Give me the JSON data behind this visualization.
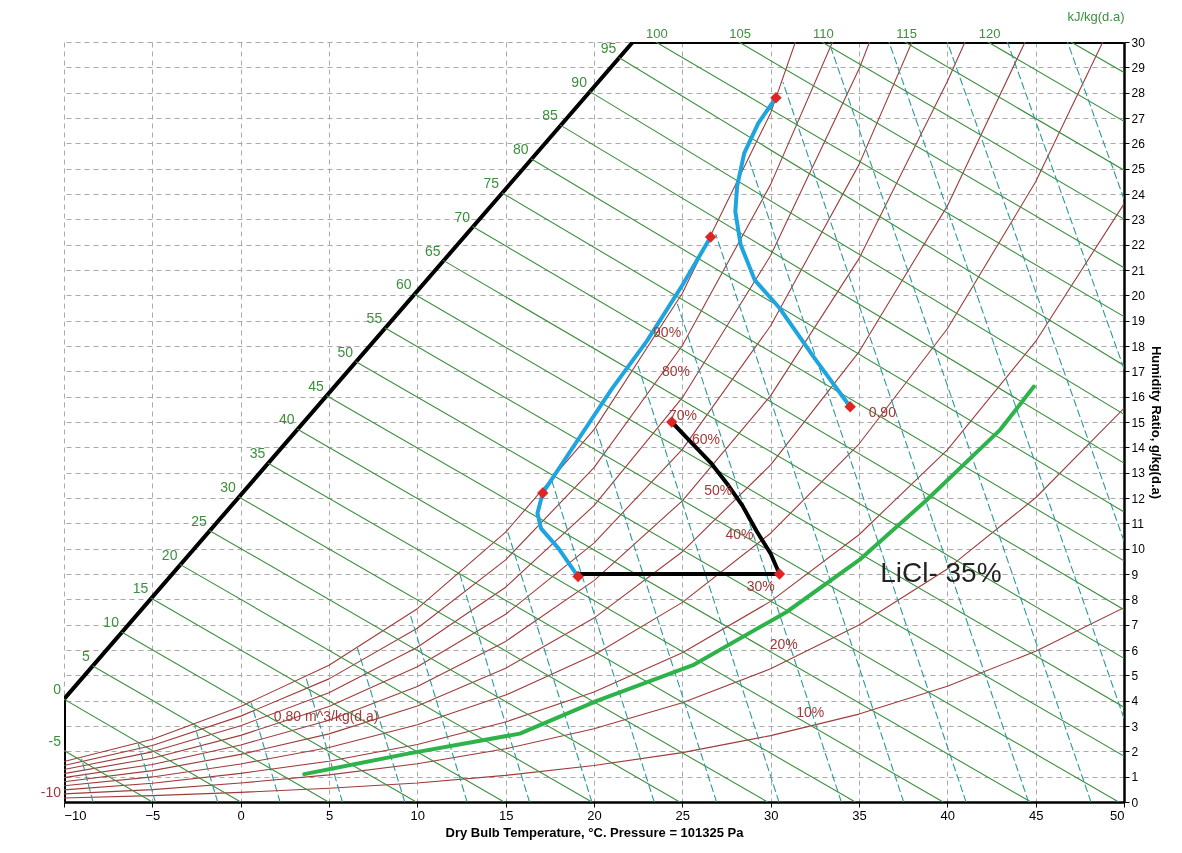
{
  "chart_data": {
    "type": "line",
    "xlabel": "Dry Bulb Temperature, °C. Pressure = 101325 Pa",
    "ylabel": "Humidity Ratio, g/kg(d.a)",
    "xlim": [
      -10,
      50
    ],
    "xticks": [
      -10,
      -5,
      0,
      5,
      10,
      15,
      20,
      25,
      30,
      35,
      40,
      45,
      50
    ],
    "ylim": [
      0,
      30
    ],
    "yticks": [
      0,
      1,
      2,
      3,
      4,
      5,
      6,
      7,
      8,
      9,
      10,
      11,
      12,
      13,
      14,
      15,
      16,
      17,
      18,
      19,
      20,
      21,
      22,
      23,
      24,
      25,
      26,
      27,
      28,
      29,
      30
    ],
    "x2lim": [
      64.4,
      128.1
    ],
    "x2ticks": [
      100,
      105,
      110,
      115,
      120
    ],
    "x2label": "kJ/kg(d.a)",
    "grid": true,
    "series": [
      {
        "color": "#000000",
        "x": [
          -10,
          -10,
          22.2,
          50
        ],
        "values": [
          0,
          4.06,
          30,
          30
        ]
      },
      {
        "color": "#a03a3a",
        "x": [
          -10,
          -5,
          0,
          5,
          10,
          15,
          20,
          25,
          30,
          31.4
        ],
        "values": [
          1.6,
          2.48,
          3.77,
          5.4,
          7.63,
          10.65,
          14.7,
          20.08,
          27.2,
          30
        ]
      },
      {
        "color": "#a03a3a",
        "x": [
          -10,
          -5,
          0,
          5,
          10,
          15,
          20,
          25,
          30,
          33.5
        ],
        "values": [
          1.44,
          2.23,
          3.39,
          4.86,
          6.86,
          9.56,
          13.2,
          18.02,
          24.38,
          30
        ]
      },
      {
        "color": "#a03a3a",
        "x": [
          -10,
          -5,
          0,
          5,
          10,
          15,
          20,
          25,
          30,
          35,
          35.6
        ],
        "values": [
          1.28,
          1.98,
          3.01,
          4.31,
          6.11,
          8.48,
          11.7,
          15.96,
          21.57,
          28.93,
          30
        ]
      },
      {
        "color": "#a03a3a",
        "x": [
          -10,
          -5,
          0,
          5,
          10,
          15,
          20,
          25,
          30,
          35,
          38.0
        ],
        "values": [
          1.12,
          1.73,
          2.63,
          3.77,
          5.34,
          7.41,
          10.22,
          13.92,
          18.8,
          25.16,
          30
        ]
      },
      {
        "color": "#a03a3a",
        "x": [
          -10,
          -5,
          0,
          5,
          10,
          15,
          20,
          25,
          30,
          35,
          40,
          41.0
        ],
        "values": [
          0.96,
          1.48,
          2.25,
          3.23,
          4.56,
          6.34,
          8.74,
          11.89,
          16.04,
          21.45,
          28.44,
          30
        ]
      },
      {
        "color": "#a03a3a",
        "x": [
          -10,
          -5,
          0,
          5,
          10,
          15,
          20,
          25,
          30,
          35,
          40,
          44.4
        ],
        "values": [
          0.8,
          1.24,
          1.88,
          2.69,
          3.79,
          5.28,
          7.26,
          9.88,
          13.31,
          17.77,
          23.53,
          30
        ]
      },
      {
        "color": "#a03a3a",
        "x": [
          -10,
          -5,
          0,
          5,
          10,
          15,
          20,
          25,
          30,
          35,
          40,
          45,
          48.8
        ],
        "values": [
          0.64,
          0.99,
          1.5,
          2.15,
          3.05,
          4.22,
          5.8,
          7.88,
          10.61,
          14.13,
          18.68,
          24.48,
          30
        ]
      },
      {
        "color": "#a03a3a",
        "x": [
          -10,
          -5,
          0,
          5,
          10,
          15,
          20,
          25,
          30,
          35,
          40,
          45,
          50
        ],
        "values": [
          0.48,
          0.74,
          1.13,
          1.61,
          2.27,
          3.16,
          4.34,
          5.89,
          7.92,
          10.55,
          13.9,
          18.18,
          23.61
        ]
      },
      {
        "color": "#a03a3a",
        "x": [
          -10,
          -5,
          0,
          5,
          10,
          15,
          20,
          25,
          30,
          35,
          40,
          45,
          50
        ],
        "values": [
          0.32,
          0.49,
          0.75,
          1.07,
          1.51,
          2.1,
          2.89,
          3.92,
          5.26,
          6.99,
          9.2,
          12.01,
          15.54
        ]
      },
      {
        "color": "#a03a3a",
        "x": [
          -10,
          -5,
          0,
          5,
          10,
          15,
          20,
          25,
          30,
          35,
          40,
          45,
          50
        ],
        "values": [
          0.16,
          0.25,
          0.38,
          0.54,
          0.75,
          1.05,
          1.44,
          1.95,
          2.62,
          3.47,
          4.57,
          5.95,
          7.67
        ]
      },
      {
        "color": "#3c8f3c",
        "x": [
          -10,
          -5
        ],
        "values": [
          2.03,
          0
        ]
      },
      {
        "color": "#3c8f3c",
        "x": [
          -10,
          0
        ],
        "values": [
          4.06,
          0
        ]
      },
      {
        "color": "#3c8f3c",
        "x": [
          -8.37,
          4.97
        ],
        "values": [
          5.37,
          0
        ]
      },
      {
        "color": "#3c8f3c",
        "x": [
          -6.72,
          9.94
        ],
        "values": [
          6.7,
          0
        ]
      },
      {
        "color": "#3c8f3c",
        "x": [
          -5.06,
          14.91
        ],
        "values": [
          8.04,
          0
        ]
      },
      {
        "color": "#3c8f3c",
        "x": [
          -3.41,
          19.88
        ],
        "values": [
          9.37,
          0
        ]
      },
      {
        "color": "#3c8f3c",
        "x": [
          -1.75,
          24.85
        ],
        "values": [
          10.71,
          0
        ]
      },
      {
        "color": "#3c8f3c",
        "x": [
          -0.1,
          29.82
        ],
        "values": [
          12.04,
          0
        ]
      },
      {
        "color": "#3c8f3c",
        "x": [
          1.56,
          34.79
        ],
        "values": [
          13.37,
          0
        ]
      },
      {
        "color": "#3c8f3c",
        "x": [
          3.22,
          39.76
        ],
        "values": [
          14.71,
          0
        ]
      },
      {
        "color": "#3c8f3c",
        "x": [
          4.87,
          44.73
        ],
        "values": [
          16.04,
          0
        ]
      },
      {
        "color": "#3c8f3c",
        "x": [
          6.53,
          49.7
        ],
        "values": [
          17.38,
          0
        ]
      },
      {
        "color": "#3c8f3c",
        "x": [
          8.18,
          50
        ],
        "values": [
          18.71,
          1.81
        ]
      },
      {
        "color": "#3c8f3c",
        "x": [
          9.84,
          50
        ],
        "values": [
          20.04,
          3.74
        ]
      },
      {
        "color": "#3c8f3c",
        "x": [
          11.49,
          50
        ],
        "values": [
          21.37,
          5.67
        ]
      },
      {
        "color": "#3c8f3c",
        "x": [
          13.15,
          50
        ],
        "values": [
          22.71,
          7.59
        ]
      },
      {
        "color": "#3c8f3c",
        "x": [
          14.8,
          50
        ],
        "values": [
          24.04,
          9.52
        ]
      },
      {
        "color": "#3c8f3c",
        "x": [
          16.46,
          50
        ],
        "values": [
          25.38,
          11.45
        ]
      },
      {
        "color": "#3c8f3c",
        "x": [
          18.12,
          50
        ],
        "values": [
          26.71,
          13.38
        ]
      },
      {
        "color": "#3c8f3c",
        "x": [
          19.77,
          50
        ],
        "values": [
          28.04,
          15.3
        ]
      },
      {
        "color": "#3c8f3c",
        "x": [
          21.43,
          50
        ],
        "values": [
          29.38,
          17.23
        ]
      },
      {
        "color": "#3c8f3c",
        "x": [
          23.5,
          50
        ],
        "values": [
          30,
          19.16
        ]
      },
      {
        "color": "#3c8f3c",
        "x": [
          28.2,
          50
        ],
        "values": [
          30,
          21.09
        ]
      },
      {
        "color": "#3c8f3c",
        "x": [
          32.9,
          50
        ],
        "values": [
          30,
          23.01
        ]
      },
      {
        "color": "#3c8f3c",
        "x": [
          37.6,
          50
        ],
        "values": [
          30,
          24.94
        ]
      },
      {
        "color": "#3c8f3c",
        "x": [
          42.3,
          50
        ],
        "values": [
          30,
          26.87
        ]
      },
      {
        "color": "#3c8f3c",
        "x": [
          47.0,
          50
        ],
        "values": [
          30,
          28.8
        ]
      },
      {
        "color": "#2a9a9a",
        "line_style": "dashed",
        "x": [
          -8.36,
          -9.0
        ],
        "values": [
          0,
          1.7
        ]
      },
      {
        "color": "#2a9a9a",
        "line_style": "dashed",
        "x": [
          -4.83,
          -5.8
        ],
        "values": [
          0,
          2.3
        ]
      },
      {
        "color": "#2a9a9a",
        "line_style": "dashed",
        "x": [
          -1.3,
          -2.6
        ],
        "values": [
          0,
          3.0
        ]
      },
      {
        "color": "#2a9a9a",
        "line_style": "dashed",
        "x": [
          2.23,
          0.6
        ],
        "values": [
          0,
          3.9
        ]
      },
      {
        "color": "#2a9a9a",
        "line_style": "dashed",
        "x": [
          5.76,
          3.7
        ],
        "values": [
          0,
          4.9
        ]
      },
      {
        "color": "#2a9a9a",
        "line_style": "dashed",
        "x": [
          9.29,
          6.6
        ],
        "values": [
          0,
          6.1
        ]
      },
      {
        "color": "#2a9a9a",
        "line_style": "dashed",
        "x": [
          12.82,
          9.6
        ],
        "values": [
          0,
          7.4
        ]
      },
      {
        "color": "#2a9a9a",
        "line_style": "dashed",
        "x": [
          16.35,
          12.4
        ],
        "values": [
          0,
          9.0
        ]
      },
      {
        "color": "#2a9a9a",
        "line_style": "dashed",
        "x": [
          19.88,
          15.1
        ],
        "values": [
          0,
          10.7
        ]
      },
      {
        "color": "#2a9a9a",
        "line_style": "dashed",
        "x": [
          23.41,
          17.6
        ],
        "values": [
          0,
          12.7
        ]
      },
      {
        "color": "#2a9a9a",
        "line_style": "dashed",
        "x": [
          26.94,
          20.1
        ],
        "values": [
          0,
          14.8
        ]
      },
      {
        "color": "#2a9a9a",
        "line_style": "dashed",
        "x": [
          30.47,
          22.5
        ],
        "values": [
          0,
          17.2
        ]
      },
      {
        "color": "#2a9a9a",
        "line_style": "dashed",
        "x": [
          34.0,
          24.7
        ],
        "values": [
          0,
          19.7
        ]
      },
      {
        "color": "#2a9a9a",
        "line_style": "dashed",
        "x": [
          37.53,
          26.9
        ],
        "values": [
          0,
          22.4
        ]
      },
      {
        "color": "#2a9a9a",
        "line_style": "dashed",
        "x": [
          41.06,
          28.8
        ],
        "values": [
          0,
          25.3
        ]
      },
      {
        "color": "#2a9a9a",
        "line_style": "dashed",
        "x": [
          44.6,
          30.7
        ],
        "values": [
          0,
          28.4
        ]
      },
      {
        "color": "#2a9a9a",
        "line_style": "dashed",
        "x": [
          48.13,
          33.3
        ],
        "values": [
          0,
          30
        ]
      },
      {
        "color": "#2a9a9a",
        "line_style": "dashed",
        "x": [
          50,
          36.7
        ],
        "values": [
          3.3,
          30
        ]
      },
      {
        "color": "#2a9a9a",
        "line_style": "dashed",
        "x": [
          50,
          40.0
        ],
        "values": [
          10.3,
          30
        ]
      },
      {
        "color": "#2a9a9a",
        "line_style": "dashed",
        "x": [
          50,
          43.4
        ],
        "values": [
          17.1,
          30
        ]
      },
      {
        "color": "#2a9a9a",
        "line_style": "dashed",
        "x": [
          50,
          46.8
        ],
        "values": [
          23.8,
          30
        ]
      },
      {
        "color": "#2db34a",
        "x": [
          3.6,
          9.4,
          15.8,
          20.2,
          25.6,
          30.9,
          35.1,
          38.8,
          43.0,
          44.9
        ],
        "values": [
          1.1,
          1.9,
          2.7,
          4.0,
          5.4,
          7.5,
          9.6,
          11.9,
          14.7,
          16.4
        ]
      },
      {
        "color": "#1ea5e0",
        "x": [
          19.1,
          18.0,
          17.0,
          16.8,
          17.1,
          19.0,
          21.0,
          23.0,
          25.0,
          26.6
        ],
        "values": [
          8.9,
          10.0,
          10.8,
          11.4,
          12.2,
          14.2,
          16.3,
          18.2,
          20.4,
          22.3
        ]
      },
      {
        "color": "#1ea5e0",
        "x": [
          34.5,
          32.5,
          30.5,
          29.1,
          28.3,
          28.0,
          28.1,
          28.5,
          29.3,
          30.3
        ],
        "values": [
          15.6,
          17.5,
          19.5,
          20.6,
          22.0,
          23.3,
          24.3,
          25.6,
          26.8,
          27.8
        ]
      },
      {
        "color": "#000000",
        "x": [
          24.4,
          25.5,
          26.6,
          27.6,
          28.4,
          29.2,
          30.0,
          30.5,
          19.1
        ],
        "values": [
          15.0,
          14.2,
          13.4,
          12.5,
          11.7,
          10.7,
          9.8,
          9.0,
          9.0
        ]
      },
      {
        "type": "scatter",
        "marker": "diamond",
        "color": "#e02424",
        "x": [
          19.1,
          17.1,
          26.6,
          34.5,
          30.3,
          24.4,
          30.5
        ],
        "values": [
          8.9,
          12.2,
          22.3,
          15.6,
          27.8,
          15.0,
          9.0
        ]
      }
    ],
    "annotations": [
      {
        "text": "-10",
        "x": -10,
        "y": 0
      },
      {
        "text": "-5",
        "x": -10,
        "y": 2.03
      },
      {
        "text": "0",
        "x": -10,
        "y": 4.06
      },
      {
        "text": "5",
        "x": -8.37,
        "y": 5.37
      },
      {
        "text": "10",
        "x": -6.72,
        "y": 6.7
      },
      {
        "text": "15",
        "x": -5.06,
        "y": 8.04
      },
      {
        "text": "20",
        "x": -3.41,
        "y": 9.37
      },
      {
        "text": "25",
        "x": -1.75,
        "y": 10.71
      },
      {
        "text": "30",
        "x": -0.1,
        "y": 12.04
      },
      {
        "text": "35",
        "x": 1.56,
        "y": 13.37
      },
      {
        "text": "40",
        "x": 3.22,
        "y": 14.71
      },
      {
        "text": "45",
        "x": 4.87,
        "y": 16.04
      },
      {
        "text": "50",
        "x": 6.53,
        "y": 17.38
      },
      {
        "text": "55",
        "x": 8.18,
        "y": 18.71
      },
      {
        "text": "60",
        "x": 9.84,
        "y": 20.04
      },
      {
        "text": "65",
        "x": 11.49,
        "y": 21.37
      },
      {
        "text": "70",
        "x": 13.15,
        "y": 22.71
      },
      {
        "text": "75",
        "x": 14.8,
        "y": 24.04
      },
      {
        "text": "80",
        "x": 16.46,
        "y": 25.38
      },
      {
        "text": "85",
        "x": 18.12,
        "y": 26.71
      },
      {
        "text": "90",
        "x": 19.77,
        "y": 28.04
      },
      {
        "text": "95",
        "x": 21.43,
        "y": 29.38
      },
      {
        "text": "10%",
        "x": 33.2,
        "y": 3.16
      },
      {
        "text": "20%",
        "x": 31.7,
        "y": 5.85
      },
      {
        "text": "30%",
        "x": 30.4,
        "y": 8.13
      },
      {
        "text": "40%",
        "x": 29.2,
        "y": 10.17
      },
      {
        "text": "50%",
        "x": 28.0,
        "y": 11.94
      },
      {
        "text": "60%",
        "x": 27.3,
        "y": 13.95
      },
      {
        "text": "70%",
        "x": 26.0,
        "y": 14.9
      },
      {
        "text": "80%",
        "x": 25.6,
        "y": 16.63
      },
      {
        "text": "90%",
        "x": 25.1,
        "y": 18.15
      },
      {
        "text": "0.80 m^3/kg(d.a)",
        "x": 7.97,
        "y": 3.0
      },
      {
        "text": "0.90",
        "x": 37.26,
        "y": 15.0
      },
      "LiCl- 35%"
    ]
  }
}
